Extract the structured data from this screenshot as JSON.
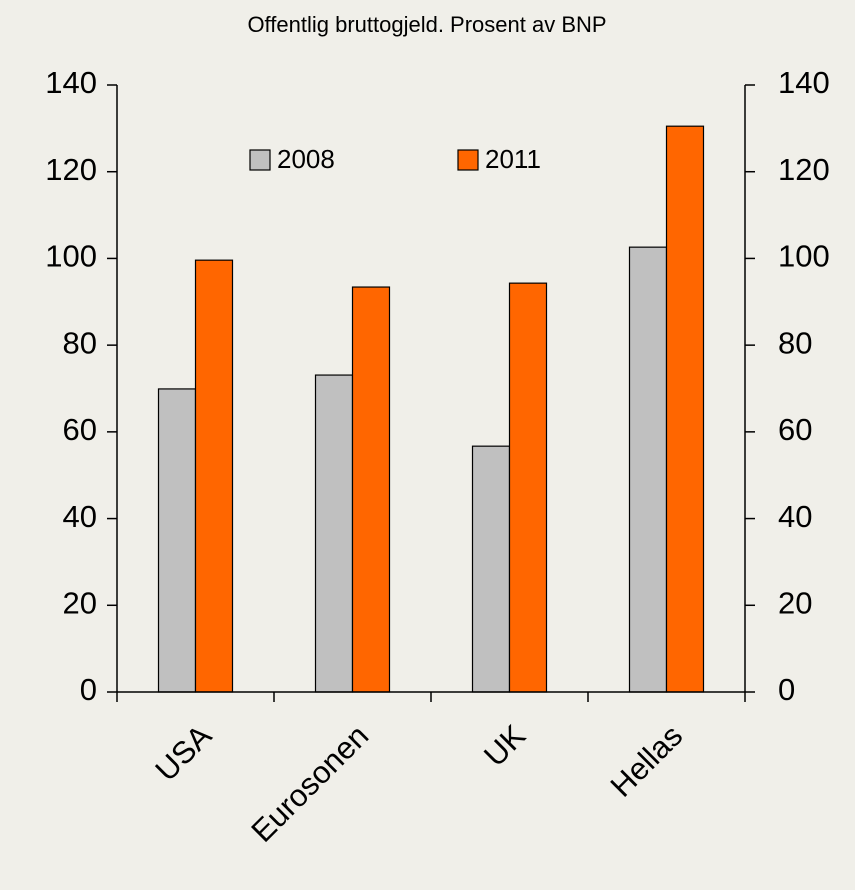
{
  "chart_data": {
    "type": "bar",
    "title": "Offentlig bruttogjeld. Prosent av BNP",
    "categories": [
      "USA",
      "Eurosonen",
      "UK",
      "Hellas"
    ],
    "series": [
      {
        "name": "2008",
        "color": "#c0c0c0",
        "values": [
          69.9,
          73.1,
          56.7,
          102.6
        ]
      },
      {
        "name": "2011",
        "color": "#ff6600",
        "values": [
          99.6,
          93.4,
          94.3,
          130.5
        ]
      }
    ],
    "ylim": [
      0,
      140
    ],
    "yticks": [
      0,
      20,
      40,
      60,
      80,
      100,
      120,
      140
    ],
    "y2lim": [
      0,
      140
    ],
    "y2ticks": [
      0,
      20,
      40,
      60,
      80,
      100,
      120,
      140
    ],
    "grid": false,
    "legend": "top"
  }
}
